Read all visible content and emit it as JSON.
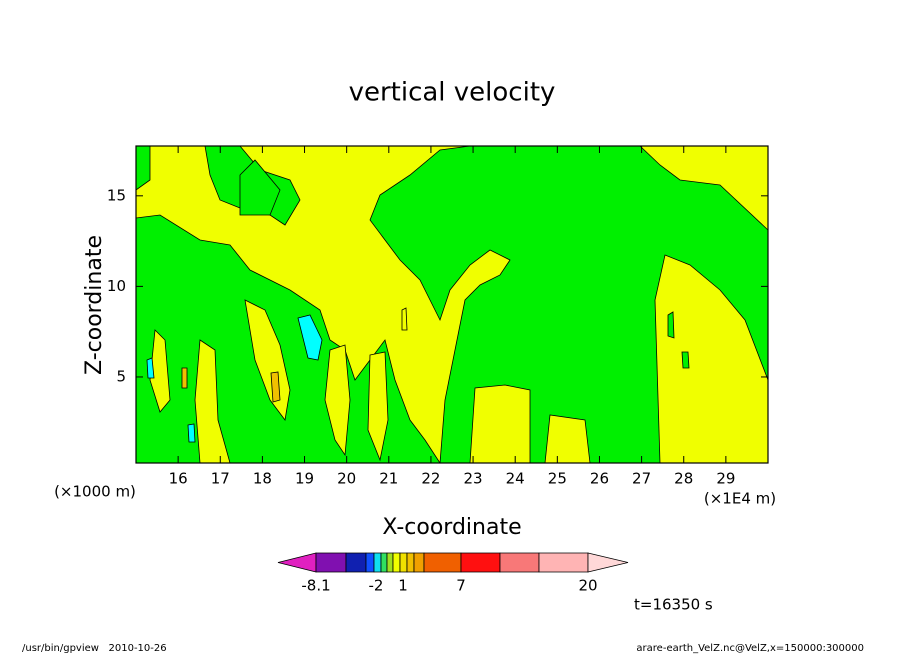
{
  "chart_data": {
    "type": "contour",
    "title": "vertical velocity",
    "x_label": "X-coordinate",
    "y_label": "Z-coordinate",
    "y_unit": "(×1000 m)",
    "x_unit": "(×1E4 m)",
    "xlim": [
      15,
      30
    ],
    "xticks": [
      16,
      17,
      18,
      19,
      20,
      21,
      22,
      23,
      24,
      25,
      26,
      27,
      28,
      29
    ],
    "ylim": [
      0.25,
      17.75
    ],
    "yticks": [
      5,
      10,
      15
    ],
    "colorbar": {
      "colors": [
        "#e020c0",
        "#8010b0",
        "#1020b0",
        "#1050ff",
        "#10e0f0",
        "#30e060",
        "#a0e020",
        "#f0ff00",
        "#f0e000",
        "#f0c000",
        "#f0a000",
        "#f06000",
        "#ff1010",
        "#f87878",
        "#ffb4b4",
        "#ffd8d8"
      ],
      "ticks": [
        -8.1,
        -2,
        1,
        7,
        20
      ]
    },
    "time_label": "t=16350 s",
    "footer_left": "/usr/bin/gpview   2010-10-26",
    "footer_right": "arare-earth_VelZ.nc@VelZ,x=150000:300000"
  }
}
